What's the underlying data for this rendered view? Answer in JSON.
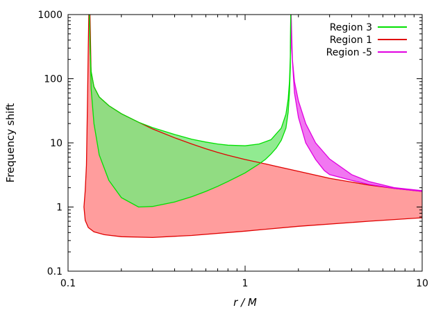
{
  "chart_data": {
    "type": "area",
    "xlabel": "r / M",
    "ylabel": "Frequency shift",
    "x_scale": "log",
    "y_scale": "log",
    "xlim": [
      0.1,
      10
    ],
    "ylim": [
      0.1,
      1000
    ],
    "x_ticks": [
      {
        "value": 0.1,
        "label": "0.1"
      },
      {
        "value": 1,
        "label": "1"
      },
      {
        "value": 10,
        "label": "10"
      }
    ],
    "y_ticks": [
      {
        "value": 0.1,
        "label": "0.1"
      },
      {
        "value": 1,
        "label": "1"
      },
      {
        "value": 10,
        "label": "10"
      },
      {
        "value": 100,
        "label": "100"
      },
      {
        "value": 1000,
        "label": "1000"
      }
    ],
    "legend_position": "top-right",
    "series": [
      {
        "name": "Region 3",
        "color": "#00e000",
        "fill": "#7ee87e",
        "upper": [
          [
            0.132,
            1000
          ],
          [
            0.133,
            300
          ],
          [
            0.135,
            130
          ],
          [
            0.14,
            75
          ],
          [
            0.15,
            52
          ],
          [
            0.17,
            38
          ],
          [
            0.2,
            28.5
          ],
          [
            0.25,
            21
          ],
          [
            0.3,
            17.3
          ],
          [
            0.4,
            13.5
          ],
          [
            0.5,
            11.4
          ],
          [
            0.6,
            10.3
          ],
          [
            0.7,
            9.6
          ],
          [
            0.8,
            9.2
          ],
          [
            1.0,
            9.0
          ],
          [
            1.2,
            9.6
          ],
          [
            1.4,
            11.2
          ],
          [
            1.6,
            17
          ],
          [
            1.7,
            28
          ],
          [
            1.75,
            48
          ],
          [
            1.78,
            90
          ],
          [
            1.8,
            220
          ],
          [
            1.81,
            1000
          ]
        ],
        "lower": [
          [
            0.132,
            1000
          ],
          [
            0.133,
            400
          ],
          [
            0.135,
            70
          ],
          [
            0.14,
            20
          ],
          [
            0.15,
            6.5
          ],
          [
            0.17,
            2.6
          ],
          [
            0.2,
            1.4
          ],
          [
            0.25,
            1.0
          ],
          [
            0.3,
            1.02
          ],
          [
            0.4,
            1.2
          ],
          [
            0.5,
            1.45
          ],
          [
            0.6,
            1.75
          ],
          [
            0.7,
            2.1
          ],
          [
            0.8,
            2.5
          ],
          [
            1.0,
            3.4
          ],
          [
            1.2,
            4.7
          ],
          [
            1.3,
            5.5
          ],
          [
            1.4,
            6.7
          ],
          [
            1.5,
            8.3
          ],
          [
            1.6,
            11
          ],
          [
            1.7,
            17
          ],
          [
            1.75,
            30
          ],
          [
            1.78,
            60
          ],
          [
            1.8,
            150
          ],
          [
            1.81,
            1000
          ]
        ]
      },
      {
        "name": "Region 1",
        "color": "#e00000",
        "fill": "#ff9898",
        "upper": [
          [
            0.123,
            1.0
          ],
          [
            0.125,
            1.8
          ],
          [
            0.127,
            4.5
          ],
          [
            0.128,
            15
          ],
          [
            0.129,
            60
          ],
          [
            0.13,
            300
          ],
          [
            0.131,
            1000
          ],
          [
            0.133,
            1000
          ],
          [
            0.135,
            130
          ],
          [
            0.14,
            75
          ],
          [
            0.15,
            52
          ],
          [
            0.17,
            38
          ],
          [
            0.2,
            28.5
          ],
          [
            0.25,
            21
          ],
          [
            0.3,
            16.5
          ],
          [
            0.4,
            12
          ],
          [
            0.5,
            9.6
          ],
          [
            0.6,
            8.1
          ],
          [
            0.7,
            7.1
          ],
          [
            0.8,
            6.4
          ],
          [
            1.0,
            5.5
          ],
          [
            1.3,
            4.7
          ],
          [
            1.5,
            4.3
          ],
          [
            2.0,
            3.6
          ],
          [
            3.0,
            2.8
          ],
          [
            5.0,
            2.2
          ],
          [
            7.0,
            1.95
          ],
          [
            10,
            1.75
          ]
        ],
        "lower": [
          [
            0.123,
            1.0
          ],
          [
            0.125,
            0.62
          ],
          [
            0.13,
            0.48
          ],
          [
            0.14,
            0.41
          ],
          [
            0.16,
            0.37
          ],
          [
            0.2,
            0.345
          ],
          [
            0.3,
            0.335
          ],
          [
            0.5,
            0.36
          ],
          [
            1.0,
            0.42
          ],
          [
            2.0,
            0.5
          ],
          [
            5.0,
            0.6
          ],
          [
            10,
            0.68
          ]
        ]
      },
      {
        "name": "Region -5",
        "color": "#e000e0",
        "fill": "#f070f0",
        "upper": [
          [
            1.82,
            1000
          ],
          [
            1.85,
            200
          ],
          [
            1.9,
            90
          ],
          [
            2.0,
            45
          ],
          [
            2.2,
            20
          ],
          [
            2.5,
            10
          ],
          [
            3.0,
            5.6
          ],
          [
            4.0,
            3.2
          ],
          [
            5.0,
            2.5
          ],
          [
            7.0,
            2.0
          ],
          [
            10,
            1.8
          ]
        ],
        "lower": [
          [
            1.82,
            1000
          ],
          [
            1.83,
            300
          ],
          [
            1.9,
            60
          ],
          [
            2.0,
            25
          ],
          [
            2.2,
            10
          ],
          [
            2.5,
            5.5
          ],
          [
            2.8,
            3.7
          ],
          [
            3.0,
            3.2
          ],
          [
            4.0,
            2.6
          ],
          [
            5.0,
            2.25
          ],
          [
            7.0,
            1.95
          ],
          [
            10,
            1.75
          ]
        ]
      }
    ]
  }
}
